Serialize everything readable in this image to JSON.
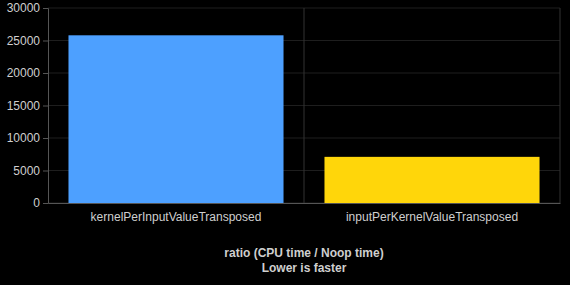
{
  "chart_data": {
    "type": "bar",
    "title": "ratio (CPU time / Noop time)",
    "subtitle": "Lower is faster",
    "categories": [
      "kernelPerInputValueTransposed",
      "inputPerKernelValueTransposed"
    ],
    "values": [
      25800,
      7100
    ],
    "colors": [
      "#4da0ff",
      "#ffd60a"
    ],
    "ylim": [
      0,
      30000
    ],
    "yticks": [
      0,
      5000,
      10000,
      15000,
      20000,
      25000,
      30000
    ],
    "grid": true
  }
}
